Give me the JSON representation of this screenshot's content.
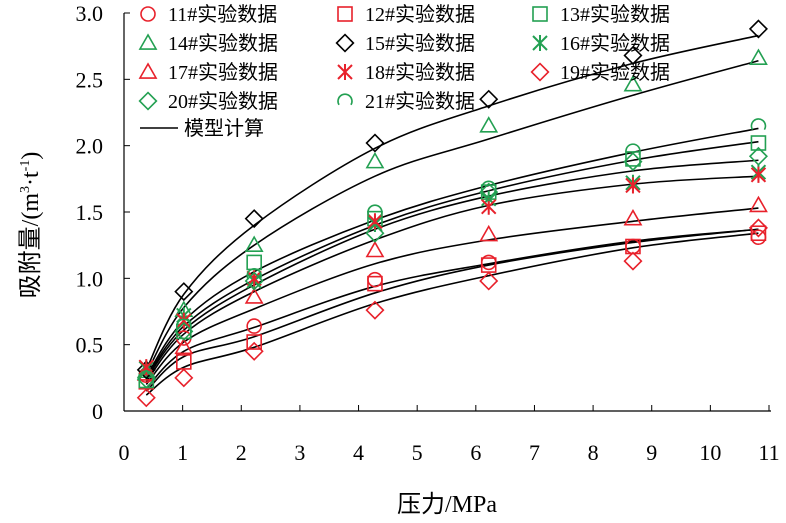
{
  "chart_data": {
    "type": "scatter",
    "xlabel": "压力/MPa",
    "ylabel_prefix": "吸附量/(m",
    "ylabel_sup1": "3",
    "ylabel_mid": "·t",
    "ylabel_sup2": "-1",
    "ylabel_suffix": ")",
    "xlim": [
      0,
      11
    ],
    "ylim": [
      0,
      3.0
    ],
    "xticks": [
      "0",
      "1",
      "2",
      "3",
      "4",
      "5",
      "6",
      "7",
      "8",
      "9",
      "10",
      "11"
    ],
    "yticks": [
      "0",
      "0.5",
      "1.0",
      "1.5",
      "2.0",
      "2.5",
      "3.0"
    ],
    "grid": false,
    "legend_position": "top-left",
    "x": [
      0.38,
      1.02,
      2.22,
      4.28,
      6.22,
      8.68,
      10.82
    ],
    "series": [
      {
        "name": "11#实验数据",
        "marker": "circle",
        "color": "#e8212b",
        "values": [
          0.27,
          0.55,
          0.64,
          0.99,
          1.12,
          1.24,
          1.31
        ]
      },
      {
        "name": "12#实验数据",
        "marker": "square",
        "color": "#e8212b",
        "values": [
          0.22,
          0.37,
          0.52,
          0.96,
          1.1,
          1.24,
          1.34
        ]
      },
      {
        "name": "13#实验数据",
        "marker": "square",
        "color": "#23a052",
        "values": [
          0.23,
          0.6,
          1.12,
          1.45,
          1.65,
          1.9,
          2.02
        ]
      },
      {
        "name": "14#实验数据",
        "marker": "triangle",
        "color": "#23a052",
        "values": [
          0.3,
          0.76,
          1.25,
          1.88,
          2.15,
          2.46,
          2.66
        ]
      },
      {
        "name": "15#实验数据",
        "marker": "diamond",
        "color": "#000000",
        "values": [
          0.31,
          0.9,
          1.45,
          2.02,
          2.35,
          2.68,
          2.88
        ]
      },
      {
        "name": "16#实验数据",
        "marker": "star",
        "color": "#23a052",
        "values": [
          0.32,
          0.72,
          0.98,
          1.41,
          1.6,
          1.72,
          1.8
        ]
      },
      {
        "name": "17#实验数据",
        "marker": "triangle",
        "color": "#e8212b",
        "values": [
          0.28,
          0.48,
          0.86,
          1.21,
          1.33,
          1.45,
          1.55
        ]
      },
      {
        "name": "18#实验数据",
        "marker": "star",
        "color": "#e8212b",
        "values": [
          0.33,
          0.68,
          1.0,
          1.43,
          1.54,
          1.7,
          1.78
        ]
      },
      {
        "name": "19#实验数据",
        "marker": "diamond",
        "color": "#e8212b",
        "values": [
          0.1,
          0.25,
          0.45,
          0.76,
          0.98,
          1.13,
          1.38
        ]
      },
      {
        "name": "20#实验数据",
        "marker": "diamond",
        "color": "#23a052",
        "values": [
          0.24,
          0.6,
          0.98,
          1.34,
          1.65,
          1.88,
          1.92
        ]
      },
      {
        "name": "21#实验数据",
        "marker": "arc",
        "color": "#23a052",
        "values": [
          0.25,
          0.64,
          1.02,
          1.5,
          1.68,
          1.96,
          2.15
        ]
      }
    ],
    "model": {
      "name": "模型计算",
      "color": "#000000",
      "x": [
        0.38,
        1.02,
        2.22,
        4.28,
        6.22,
        8.68,
        10.82
      ],
      "curves": [
        [
          0.31,
          0.88,
          1.4,
          1.98,
          2.3,
          2.62,
          2.83
        ],
        [
          0.28,
          0.78,
          1.25,
          1.77,
          2.05,
          2.38,
          2.64
        ],
        [
          0.26,
          0.68,
          1.05,
          1.44,
          1.7,
          1.95,
          2.13
        ],
        [
          0.25,
          0.64,
          0.99,
          1.4,
          1.66,
          1.89,
          2.03
        ],
        [
          0.24,
          0.61,
          0.95,
          1.37,
          1.62,
          1.81,
          1.89
        ],
        [
          0.22,
          0.58,
          0.9,
          1.29,
          1.55,
          1.71,
          1.77
        ],
        [
          0.2,
          0.52,
          0.77,
          1.11,
          1.29,
          1.43,
          1.53
        ],
        [
          0.17,
          0.45,
          0.63,
          0.94,
          1.11,
          1.28,
          1.37
        ],
        [
          0.15,
          0.41,
          0.56,
          0.89,
          1.1,
          1.27,
          1.37
        ],
        [
          0.12,
          0.33,
          0.48,
          0.81,
          1.02,
          1.23,
          1.34
        ]
      ]
    }
  }
}
